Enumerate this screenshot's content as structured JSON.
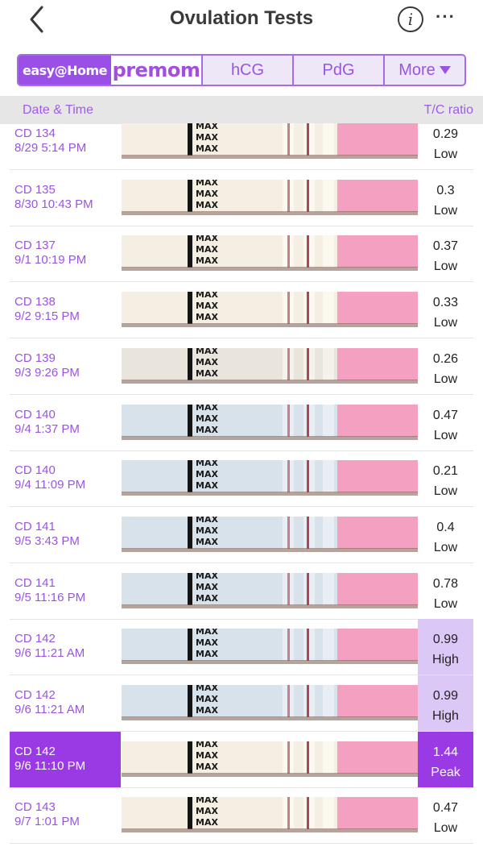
{
  "header": {
    "title": "Ovulation Tests",
    "info_glyph": "i",
    "more_glyph": "···"
  },
  "tabs": {
    "easy_label": "easy@Home",
    "premom_label": "premom",
    "hcg_label": "hCG",
    "pdg_label": "PdG",
    "more_label": "More"
  },
  "columns": {
    "left": "Date & Time",
    "right": "T/C ratio"
  },
  "strip_marker": "MAX",
  "rows": [
    {
      "cd": "CD 134",
      "datetime": "8/29 5:14 PM",
      "ratio": "0.29",
      "level": "Low",
      "theme": "cream"
    },
    {
      "cd": "CD 135",
      "datetime": "8/30 10:43 PM",
      "ratio": "0.3",
      "level": "Low",
      "theme": "cream"
    },
    {
      "cd": "CD 137",
      "datetime": "9/1 10:19 PM",
      "ratio": "0.37",
      "level": "Low",
      "theme": "cream"
    },
    {
      "cd": "CD 138",
      "datetime": "9/2 9:15 PM",
      "ratio": "0.33",
      "level": "Low",
      "theme": "cream"
    },
    {
      "cd": "CD 139",
      "datetime": "9/3 9:26 PM",
      "ratio": "0.26",
      "level": "Low",
      "theme": "grey"
    },
    {
      "cd": "CD 140",
      "datetime": "9/4 1:37 PM",
      "ratio": "0.47",
      "level": "Low",
      "theme": "blue"
    },
    {
      "cd": "CD 140",
      "datetime": "9/4 11:09 PM",
      "ratio": "0.21",
      "level": "Low",
      "theme": "blue"
    },
    {
      "cd": "CD 141",
      "datetime": "9/5 3:43 PM",
      "ratio": "0.4",
      "level": "Low",
      "theme": "blue"
    },
    {
      "cd": "CD 141",
      "datetime": "9/5 11:16 PM",
      "ratio": "0.78",
      "level": "Low",
      "theme": "blue"
    },
    {
      "cd": "CD 142",
      "datetime": "9/6 11:21 AM",
      "ratio": "0.99",
      "level": "High",
      "theme": "blue"
    },
    {
      "cd": "CD 142",
      "datetime": "9/6 11:21 AM",
      "ratio": "0.99",
      "level": "High",
      "theme": "blue"
    },
    {
      "cd": "CD 142",
      "datetime": "9/6 11:10 PM",
      "ratio": "1.44",
      "level": "Peak",
      "theme": "cream",
      "selected": true
    },
    {
      "cd": "CD 143",
      "datetime": "9/7 1:01 PM",
      "ratio": "0.47",
      "level": "Low",
      "theme": "cream"
    }
  ],
  "colors": {
    "accent": "#9a3ae4",
    "accent_text": "#9a55e0",
    "high_bg": "#dcc8f6",
    "strip_pink": "#f4a0c0"
  }
}
